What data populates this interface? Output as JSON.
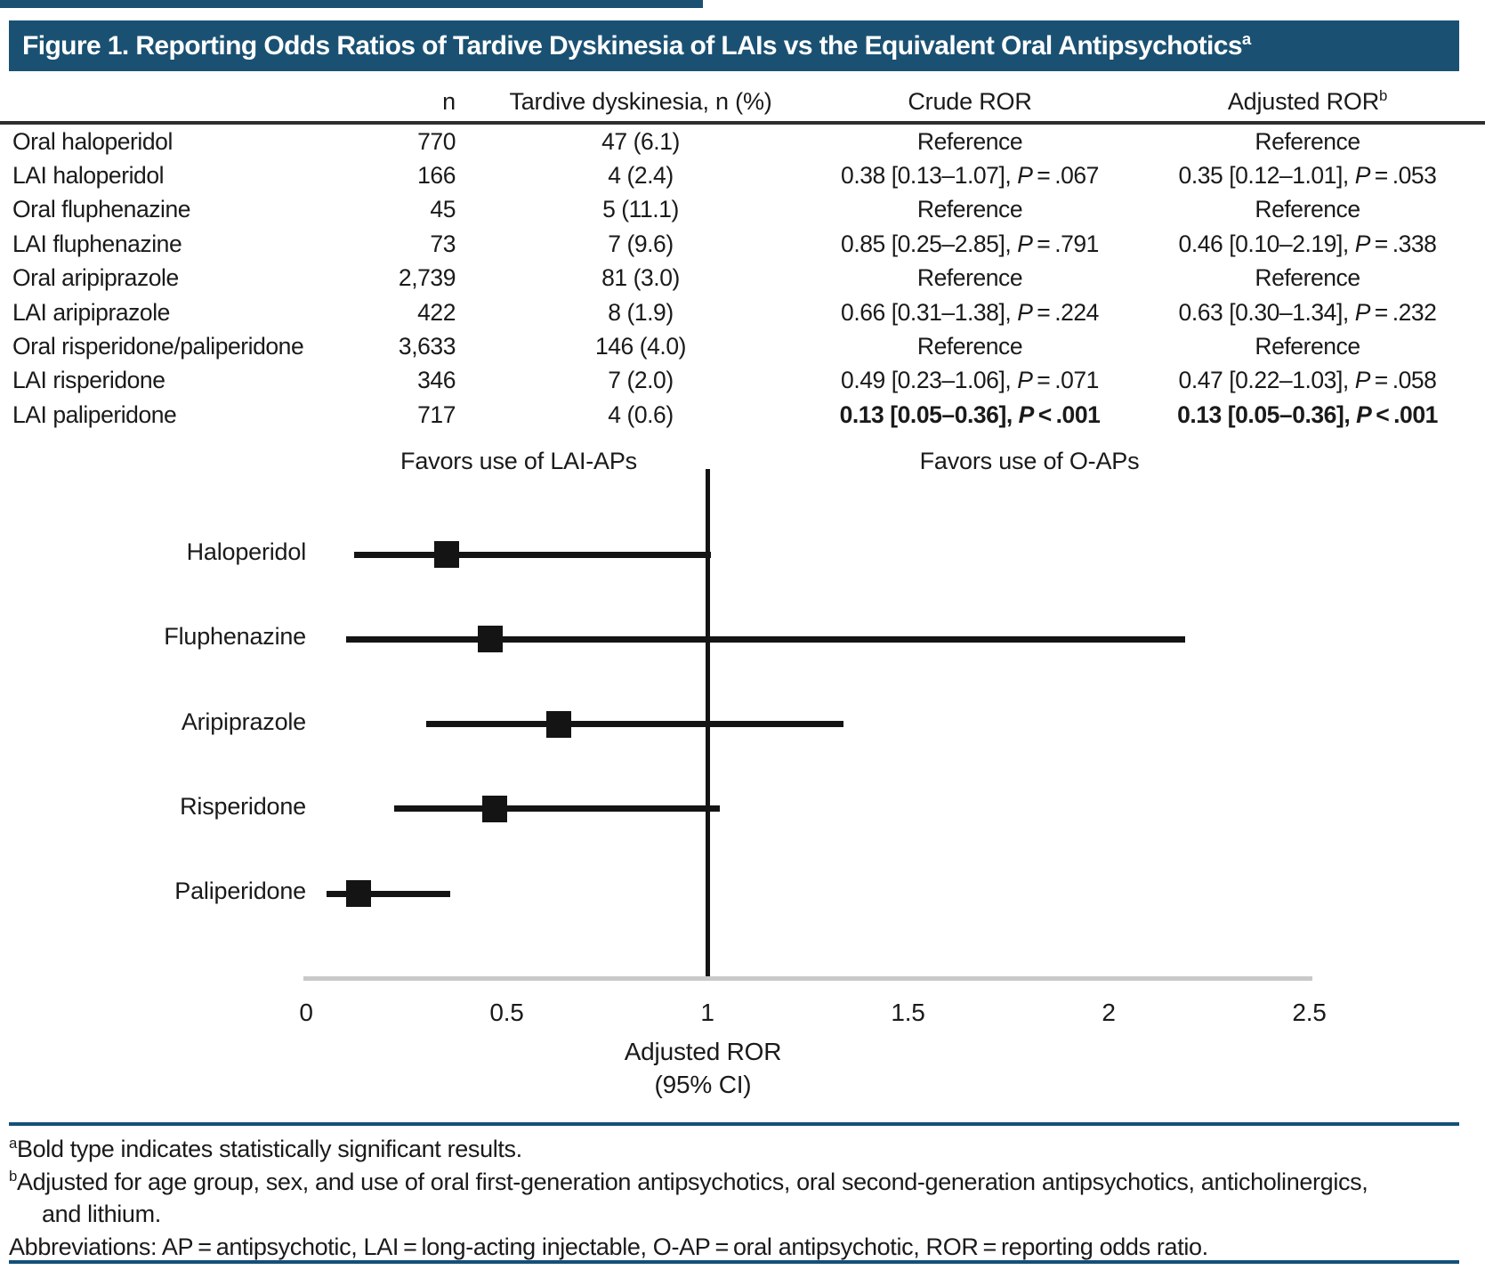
{
  "figure": {
    "title": {
      "text": "Figure 1. Reporting Odds Ratios of Tardive Dyskinesia of LAIs vs the Equivalent Oral Antipsychotics",
      "sup": "a"
    }
  },
  "table": {
    "headers": {
      "drug": "",
      "n": "n",
      "td": "Tardive dyskinesia, n (%)",
      "crude": "Crude ROR",
      "adjusted": {
        "text": "Adjusted ROR",
        "sup": "b"
      }
    },
    "rows": [
      {
        "name": "Oral haloperidol",
        "n": "770",
        "td": "47 (6.1)",
        "crude": {
          "pre": "Reference",
          "p": "",
          "post": ""
        },
        "adj": {
          "pre": "Reference",
          "p": "",
          "post": ""
        }
      },
      {
        "name": "LAI haloperidol",
        "n": "166",
        "td": "4 (2.4)",
        "crude": {
          "pre": "0.38 [0.13–1.07], ",
          "p": "P",
          "post": " = .067"
        },
        "adj": {
          "pre": "0.35 [0.12–1.01], ",
          "p": "P",
          "post": " = .053"
        }
      },
      {
        "name": "Oral fluphenazine",
        "n": "45",
        "td": "5 (11.1)",
        "crude": {
          "pre": "Reference",
          "p": "",
          "post": ""
        },
        "adj": {
          "pre": "Reference",
          "p": "",
          "post": ""
        }
      },
      {
        "name": "LAI fluphenazine",
        "n": "73",
        "td": "7 (9.6)",
        "crude": {
          "pre": "0.85 [0.25–2.85], ",
          "p": "P",
          "post": " = .791"
        },
        "adj": {
          "pre": "0.46 [0.10–2.19], ",
          "p": "P",
          "post": " = .338"
        }
      },
      {
        "name": "Oral aripiprazole",
        "n": "2,739",
        "td": "81 (3.0)",
        "crude": {
          "pre": "Reference",
          "p": "",
          "post": ""
        },
        "adj": {
          "pre": "Reference",
          "p": "",
          "post": ""
        }
      },
      {
        "name": "LAI aripiprazole",
        "n": "422",
        "td": "8 (1.9)",
        "crude": {
          "pre": "0.66 [0.31–1.38], ",
          "p": "P",
          "post": " = .224"
        },
        "adj": {
          "pre": "0.63 [0.30–1.34], ",
          "p": "P",
          "post": " = .232"
        }
      },
      {
        "name": "Oral risperidone/paliperidone",
        "n": "3,633",
        "td": "146 (4.0)",
        "crude": {
          "pre": "Reference",
          "p": "",
          "post": ""
        },
        "adj": {
          "pre": "Reference",
          "p": "",
          "post": ""
        }
      },
      {
        "name": "LAI risperidone",
        "n": "346",
        "td": "7 (2.0)",
        "crude": {
          "pre": "0.49 [0.23–1.06], ",
          "p": "P",
          "post": " = .071"
        },
        "adj": {
          "pre": "0.47 [0.22–1.03], ",
          "p": "P",
          "post": " = .058"
        }
      },
      {
        "name": "LAI paliperidone",
        "n": "717",
        "td": "4 (0.6)",
        "crude": {
          "pre": "0.13 [0.05–0.36], ",
          "p": "P",
          "post": " < .001"
        },
        "adj": {
          "pre": "0.13 [0.05–0.36], ",
          "p": "P",
          "post": " < .001"
        }
      }
    ]
  },
  "chart_data": {
    "type": "scatter",
    "subtype": "forest-plot",
    "categories": [
      "Haloperidol",
      "Fluphenazine",
      "Aripiprazole",
      "Risperidone",
      "Paliperidone"
    ],
    "points": [
      {
        "label": "Haloperidol",
        "estimate": 0.35,
        "ci_low": 0.12,
        "ci_high": 1.01
      },
      {
        "label": "Fluphenazine",
        "estimate": 0.46,
        "ci_low": 0.1,
        "ci_high": 2.19
      },
      {
        "label": "Aripiprazole",
        "estimate": 0.63,
        "ci_low": 0.3,
        "ci_high": 1.34
      },
      {
        "label": "Risperidone",
        "estimate": 0.47,
        "ci_low": 0.22,
        "ci_high": 1.03
      },
      {
        "label": "Paliperidone",
        "estimate": 0.13,
        "ci_low": 0.05,
        "ci_high": 0.36
      }
    ],
    "left_annotation": "Favors use of LAI-APs",
    "right_annotation": "Favors use of O-APs",
    "xlabel_line1": "Adjusted ROR",
    "xlabel_line2": "(95% CI)",
    "xlim": [
      0,
      2.5
    ],
    "ref_line": 1,
    "xticks": [
      0,
      0.5,
      1,
      1.5,
      2,
      2.5
    ],
    "xtick_labels": [
      "0",
      "0.5",
      "1",
      "1.5",
      "2",
      "2.5"
    ],
    "grid": false,
    "legend": "none"
  },
  "footnotes": {
    "a": {
      "sup": "a",
      "text": "Bold type indicates statistically significant results."
    },
    "b": {
      "sup": "b",
      "text": "Adjusted for age group, sex, and use of oral first-generation antipsychotics, oral second-generation antipsychotics, anticholinergics, and lithium."
    },
    "abbrev": {
      "sup": "",
      "text": "Abbreviations: AP = antipsychotic, LAI = long-acting injectable, O-AP = oral antipsychotic, ROR = reporting odds ratio."
    }
  },
  "colors": {
    "accent_blue": "#1a5173",
    "rule_blue": "#135079",
    "text": "#1a1a1a",
    "marker_black": "#141414",
    "axis_gray": "#c9c9c9"
  }
}
